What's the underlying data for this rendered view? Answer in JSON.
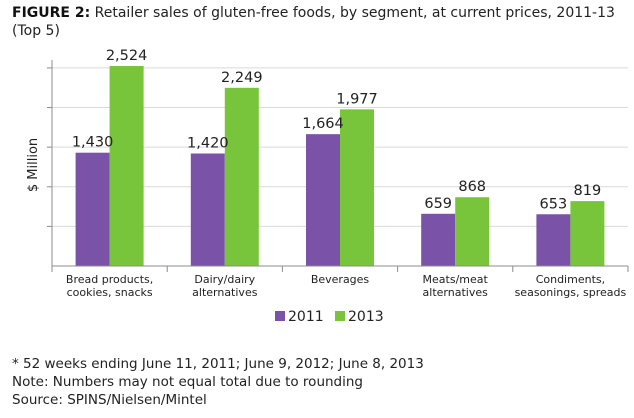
{
  "header": {
    "label": "FIGURE 2:",
    "title": "Retailer sales of gluten-free foods, by segment, at current prices, 2011-13",
    "subtitle": "(Top 5)"
  },
  "colors": {
    "s2011": "#7a52a8",
    "s2013": "#78c43a",
    "grid": "#d9d9d9",
    "axis": "#8c8c8c"
  },
  "chart_data": {
    "type": "bar",
    "ylabel": "$ Million",
    "ylim": [
      0,
      2600
    ],
    "grid": true,
    "legend_position": "bottom-center",
    "categories": [
      [
        "Bread products,",
        "cookies, snacks"
      ],
      [
        "Dairy/dairy",
        "alternatives"
      ],
      [
        "Beverages"
      ],
      [
        "Meats/meat",
        "alternatives"
      ],
      [
        "Condiments,",
        "seasonings, spreads"
      ]
    ],
    "series": [
      {
        "name": "2011",
        "values": [
          1430,
          1420,
          1664,
          659,
          653
        ],
        "labels": [
          "1,430",
          "1,420",
          "1,664",
          "659",
          "653"
        ]
      },
      {
        "name": "2013",
        "values": [
          2524,
          2249,
          1977,
          868,
          819
        ],
        "labels": [
          "2,524",
          "2,249",
          "1,977",
          "868",
          "819"
        ]
      }
    ]
  },
  "notes": [
    "* 52 weeks ending June 11, 2011; June 9, 2012; June 8, 2013",
    "Note: Numbers may not equal total due to rounding",
    "Source: SPINS/Nielsen/Mintel"
  ]
}
